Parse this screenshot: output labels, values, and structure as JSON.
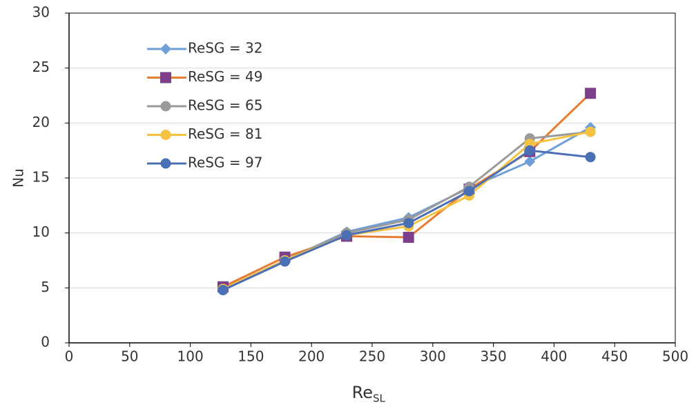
{
  "chart_data": {
    "type": "line",
    "x_label": "Re",
    "x_label_sub": "SL",
    "y_label": "Nu",
    "x": [
      127,
      178,
      229,
      280,
      330,
      380,
      430
    ],
    "series": [
      {
        "name": "ReSG = 32",
        "color": "#6f9fd8",
        "marker": "diamond",
        "values": [
          4.9,
          7.5,
          10.1,
          11.4,
          14.1,
          16.5,
          19.6
        ]
      },
      {
        "name": "ReSG = 49",
        "color": "#e97b30",
        "marker": "square",
        "marker_color": "#7b3f8c",
        "values": [
          5.1,
          7.8,
          9.7,
          9.6,
          14.0,
          17.4,
          22.7
        ]
      },
      {
        "name": "ReSG = 65",
        "color": "#9a9a9a",
        "marker": "circle",
        "values": [
          4.9,
          7.5,
          10.0,
          11.2,
          14.2,
          18.6,
          19.2
        ]
      },
      {
        "name": "ReSG = 81",
        "color": "#f5c242",
        "marker": "circle",
        "values": [
          4.9,
          7.5,
          9.8,
          10.6,
          13.4,
          18.1,
          19.2
        ]
      },
      {
        "name": "ReSG = 97",
        "color": "#4a6fb5",
        "marker": "circle",
        "values": [
          4.8,
          7.4,
          9.8,
          10.9,
          13.8,
          17.5,
          16.9
        ]
      }
    ],
    "xlim": [
      0,
      500
    ],
    "xticks": [
      0,
      50,
      100,
      150,
      200,
      250,
      300,
      350,
      400,
      450,
      500
    ],
    "ylim": [
      0,
      30
    ],
    "yticks": [
      0,
      5,
      10,
      15,
      20,
      25,
      30
    ],
    "grid": true,
    "legend": "upper-left"
  }
}
